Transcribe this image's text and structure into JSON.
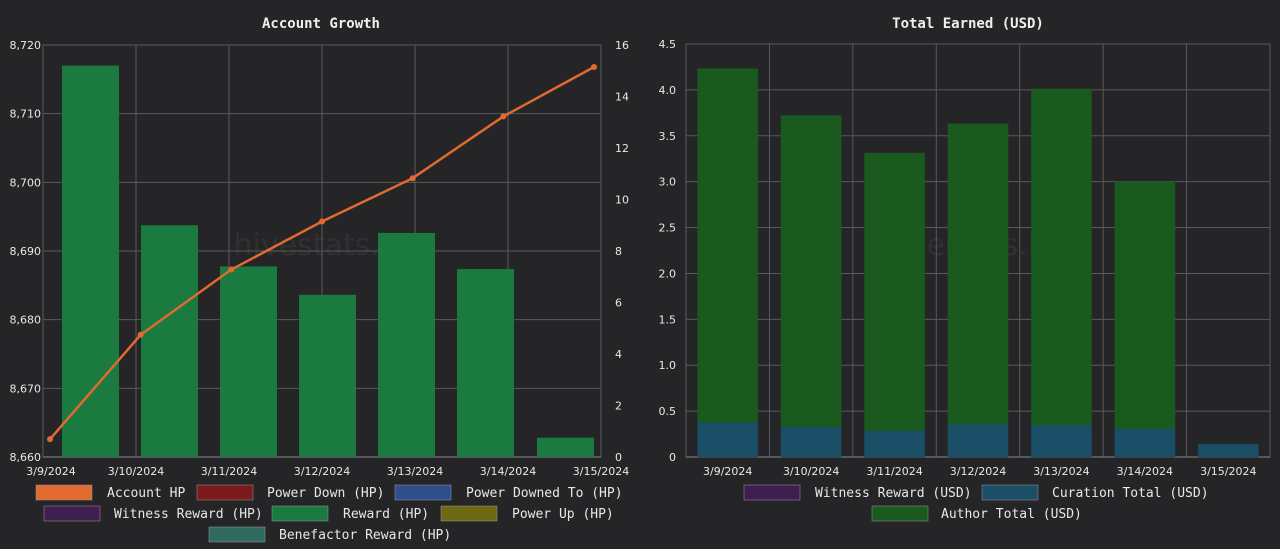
{
  "watermark": "hivestats.io",
  "charts": [
    {
      "title": "Account Growth",
      "chart_data": {
        "type": "bar",
        "title": "Account Growth",
        "categories": [
          "3/9/2024",
          "3/10/2024",
          "3/11/2024",
          "3/12/2024",
          "3/13/2024",
          "3/14/2024",
          "3/15/2024"
        ],
        "y_left": {
          "ylim": [
            8660,
            8720
          ],
          "ticks": [
            8660,
            8670,
            8680,
            8690,
            8700,
            8710,
            8720
          ],
          "tick_labels": [
            "8,660",
            "8,670",
            "8,680",
            "8,690",
            "8,700",
            "8,710",
            "8,720"
          ]
        },
        "y_right": {
          "ylim": [
            0,
            16
          ],
          "ticks": [
            0,
            2,
            4,
            6,
            8,
            10,
            12,
            14,
            16
          ]
        },
        "series": [
          {
            "name": "Account HP",
            "kind": "line",
            "axis": "left",
            "color": "#e06a30",
            "values": [
              8662.6,
              8677.8,
              8687.3,
              8694.3,
              8700.6,
              8709.6,
              8716.8
            ]
          },
          {
            "name": "Power Down (HP)",
            "kind": "bar",
            "axis": "right",
            "color": "#7a1a1a",
            "values": [
              0,
              0,
              0,
              0,
              0,
              0,
              0
            ]
          },
          {
            "name": "Power Downed To (HP)",
            "kind": "bar",
            "axis": "right",
            "color": "#2e4e8c",
            "values": [
              0,
              0,
              0,
              0,
              0,
              0,
              0
            ]
          },
          {
            "name": "Witness Reward (HP)",
            "kind": "bar",
            "axis": "right",
            "color": "#3e1f4f",
            "values": [
              0,
              0,
              0,
              0,
              0,
              0,
              0
            ]
          },
          {
            "name": "Reward (HP)",
            "kind": "bar",
            "axis": "right",
            "color": "#1b7a3f",
            "values": [
              15.2,
              9.0,
              7.4,
              6.3,
              8.7,
              7.3,
              0.75
            ]
          },
          {
            "name": "Power Up (HP)",
            "kind": "bar",
            "axis": "right",
            "color": "#6e6a14",
            "values": [
              0,
              0,
              0,
              0,
              0,
              0,
              0
            ]
          },
          {
            "name": "Benefactor Reward (HP)",
            "kind": "bar",
            "axis": "right",
            "color": "#2f6a5e",
            "values": [
              0,
              0,
              0,
              0,
              0,
              0,
              0
            ]
          }
        ],
        "grid": true,
        "legend": "bottom"
      }
    },
    {
      "title": "Total Earned (USD)",
      "chart_data": {
        "type": "bar",
        "stacked": true,
        "title": "Total Earned (USD)",
        "categories": [
          "3/9/2024",
          "3/10/2024",
          "3/11/2024",
          "3/12/2024",
          "3/13/2024",
          "3/14/2024",
          "3/15/2024"
        ],
        "y": {
          "ylim": [
            0,
            4.5
          ],
          "ticks": [
            0,
            0.5,
            1.0,
            1.5,
            2.0,
            2.5,
            3.0,
            3.5,
            4.0,
            4.5
          ],
          "tick_labels": [
            "0",
            "0.5",
            "1.0",
            "1.5",
            "2.0",
            "2.5",
            "3.0",
            "3.5",
            "4.0",
            "4.5"
          ]
        },
        "series": [
          {
            "name": "Witness Reward (USD)",
            "color": "#3e1f4f",
            "values": [
              0,
              0,
              0,
              0,
              0,
              0,
              0
            ]
          },
          {
            "name": "Curation Total (USD)",
            "color": "#1b4f68",
            "values": [
              0.38,
              0.33,
              0.29,
              0.36,
              0.35,
              0.31,
              0.14
            ]
          },
          {
            "name": "Author Total (USD)",
            "color": "#1a5a1e",
            "values": [
              3.85,
              3.39,
              3.02,
              3.27,
              3.66,
              2.69,
              0
            ]
          }
        ],
        "grid": true,
        "legend": "bottom"
      }
    }
  ]
}
